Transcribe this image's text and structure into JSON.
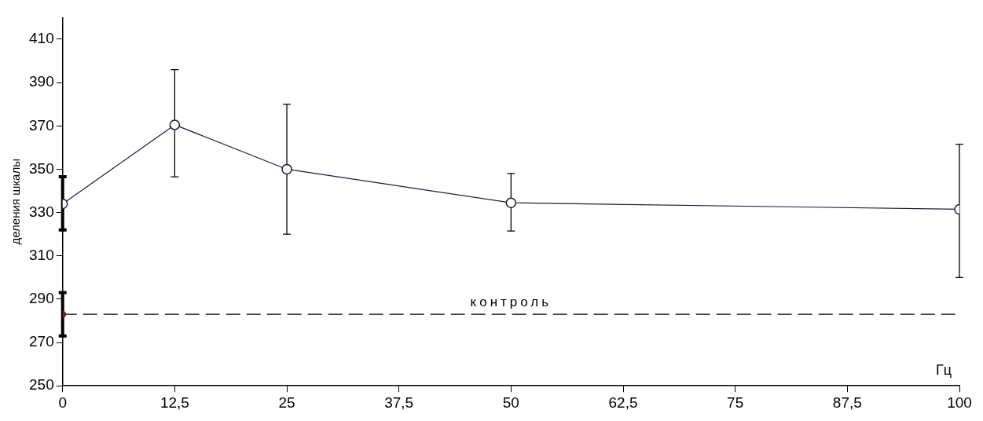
{
  "chart_data": {
    "type": "line",
    "xlabel": "Гц",
    "ylabel": "деления шкалы",
    "x": [
      0,
      12.5,
      25,
      50,
      100
    ],
    "series": [
      {
        "color": "#1a1a3a",
        "marker": "circle",
        "values": [
          334,
          370.5,
          350,
          334.5,
          331.5
        ],
        "errors": [
          [
            322,
            346.5
          ],
          [
            346.5,
            396
          ],
          [
            320,
            380
          ],
          [
            321.5,
            348
          ],
          [
            300,
            361.5
          ]
        ]
      },
      {
        "type": "scatter",
        "color": "#7a1a1a",
        "x": [
          0
        ],
        "values": [
          283
        ],
        "errors": [
          [
            273,
            293
          ]
        ]
      }
    ],
    "ref_lines": [
      {
        "axis": "y",
        "value": 283,
        "label": "контроль",
        "color": "#000000",
        "line_style": "dashed"
      }
    ],
    "xlim": [
      0,
      100
    ],
    "xticks": [
      0,
      {
        "value": 12.5,
        "label": "12,5"
      },
      25,
      {
        "value": 37.5,
        "label": "37,5"
      },
      50,
      {
        "value": 62.5,
        "label": "62,5"
      },
      75,
      {
        "value": 87.5,
        "label": "87,5"
      },
      100
    ],
    "ylim": [
      250,
      420
    ],
    "yticks": [
      250,
      270,
      290,
      310,
      330,
      350,
      370,
      390,
      410
    ],
    "grid": false,
    "legend": false
  }
}
